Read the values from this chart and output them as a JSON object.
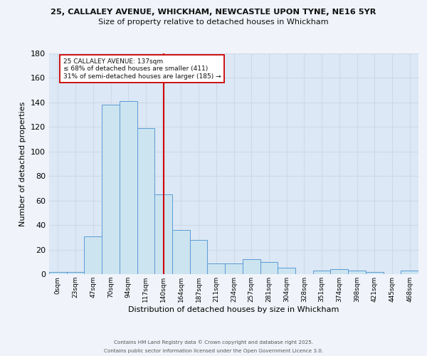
{
  "title_line1": "25, CALLALEY AVENUE, WHICKHAM, NEWCASTLE UPON TYNE, NE16 5YR",
  "title_line2": "Size of property relative to detached houses in Whickham",
  "xlabel": "Distribution of detached houses by size in Whickham",
  "ylabel": "Number of detached properties",
  "bin_labels": [
    "0sqm",
    "23sqm",
    "47sqm",
    "70sqm",
    "94sqm",
    "117sqm",
    "140sqm",
    "164sqm",
    "187sqm",
    "211sqm",
    "234sqm",
    "257sqm",
    "281sqm",
    "304sqm",
    "328sqm",
    "351sqm",
    "374sqm",
    "398sqm",
    "421sqm",
    "445sqm",
    "468sqm"
  ],
  "bar_values": [
    2,
    2,
    31,
    138,
    141,
    119,
    65,
    36,
    28,
    9,
    9,
    12,
    10,
    5,
    0,
    3,
    4,
    3,
    2,
    0,
    3
  ],
  "bar_color": "#cce4f0",
  "bar_edge_color": "#5b9bd5",
  "vline_x": 6.0,
  "vline_color": "#cc0000",
  "annotation_text": "25 CALLALEY AVENUE: 137sqm\n≤ 68% of detached houses are smaller (411)\n31% of semi-detached houses are larger (185) →",
  "annotation_box_color": "#ffffff",
  "annotation_box_edge": "#cc0000",
  "ylim": [
    0,
    180
  ],
  "yticks": [
    0,
    20,
    40,
    60,
    80,
    100,
    120,
    140,
    160,
    180
  ],
  "grid_color": "#d0d8e8",
  "bg_color": "#dce8f5",
  "footer1": "Contains HM Land Registry data © Crown copyright and database right 2025.",
  "footer2": "Contains public sector information licensed under the Open Government Licence 3.0.",
  "fig_bg": "#f0f4fa"
}
